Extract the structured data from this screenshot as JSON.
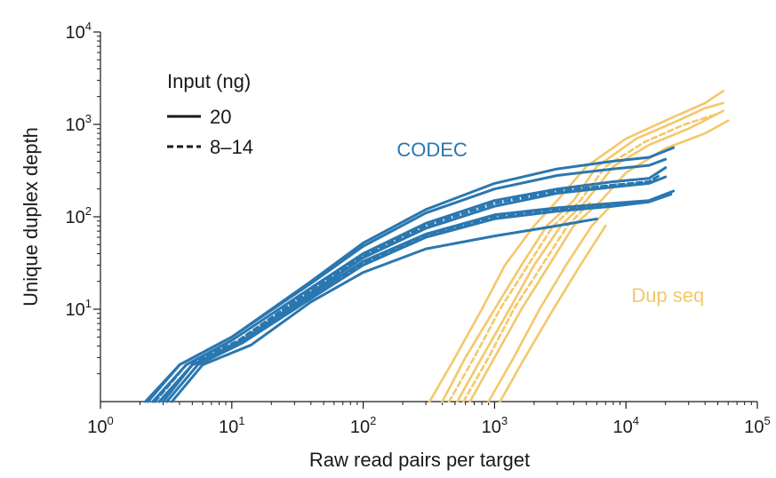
{
  "chart_data": {
    "type": "line",
    "xlabel": "Raw read pairs per target",
    "ylabel": "Unique duplex depth",
    "x_scale": "log",
    "y_scale": "log",
    "xlim": [
      1,
      100000
    ],
    "ylim": [
      1,
      10000
    ],
    "x_ticks": [
      {
        "base": "10",
        "exp": "0",
        "value": 1
      },
      {
        "base": "10",
        "exp": "1",
        "value": 10
      },
      {
        "base": "10",
        "exp": "2",
        "value": 100
      },
      {
        "base": "10",
        "exp": "3",
        "value": 1000
      },
      {
        "base": "10",
        "exp": "4",
        "value": 10000
      },
      {
        "base": "10",
        "exp": "5",
        "value": 100000
      }
    ],
    "y_ticks": [
      {
        "base": "10",
        "exp": "1",
        "value": 10
      },
      {
        "base": "10",
        "exp": "2",
        "value": 100
      },
      {
        "base": "10",
        "exp": "3",
        "value": 1000
      },
      {
        "base": "10",
        "exp": "4",
        "value": 10000
      }
    ],
    "grid": false,
    "legend": {
      "title": "Input (ng)",
      "position": "top-left",
      "entries": [
        {
          "label": "20",
          "style": "solid"
        },
        {
          "label": "8–14",
          "style": "dashed"
        }
      ]
    },
    "groups": [
      {
        "label": "CODEC",
        "color": "#2a77b0",
        "label_at": [
          180,
          450
        ]
      },
      {
        "label": "Dup seq",
        "color": "#f4c76a",
        "label_at": [
          11000,
          12
        ]
      }
    ],
    "series": [
      {
        "group": "CODEC",
        "style": "solid",
        "points": [
          [
            2.2,
            1
          ],
          [
            4,
            2.5
          ],
          [
            10,
            5
          ],
          [
            40,
            20
          ],
          [
            100,
            52
          ],
          [
            300,
            120
          ],
          [
            1000,
            230
          ],
          [
            3000,
            330
          ],
          [
            8000,
            400
          ],
          [
            15000,
            440
          ],
          [
            23000,
            560
          ]
        ]
      },
      {
        "group": "CODEC",
        "style": "solid",
        "points": [
          [
            2.3,
            1
          ],
          [
            4,
            2.5
          ],
          [
            10,
            5
          ],
          [
            40,
            19
          ],
          [
            100,
            48
          ],
          [
            300,
            110
          ],
          [
            1000,
            200
          ],
          [
            3000,
            280
          ],
          [
            8000,
            330
          ],
          [
            15000,
            360
          ],
          [
            20000,
            420
          ]
        ]
      },
      {
        "group": "CODEC",
        "style": "solid",
        "points": [
          [
            2.5,
            1
          ],
          [
            4.5,
            2.5
          ],
          [
            10,
            4.6
          ],
          [
            40,
            17
          ],
          [
            100,
            40
          ],
          [
            300,
            85
          ],
          [
            1000,
            150
          ],
          [
            3000,
            200
          ],
          [
            8000,
            240
          ],
          [
            15000,
            260
          ],
          [
            20000,
            340
          ]
        ]
      },
      {
        "group": "CODEC",
        "style": "solid",
        "points": [
          [
            2.8,
            1
          ],
          [
            5,
            2.5
          ],
          [
            12,
            4.6
          ],
          [
            40,
            15
          ],
          [
            100,
            36
          ],
          [
            300,
            75
          ],
          [
            1000,
            130
          ],
          [
            3000,
            180
          ],
          [
            8000,
            210
          ],
          [
            15000,
            230
          ],
          [
            20000,
            270
          ]
        ]
      },
      {
        "group": "CODEC",
        "style": "solid",
        "points": [
          [
            3,
            1
          ],
          [
            5,
            2.5
          ],
          [
            12,
            4.4
          ],
          [
            40,
            14
          ],
          [
            100,
            33
          ],
          [
            300,
            65
          ],
          [
            1000,
            105
          ],
          [
            3000,
            125
          ],
          [
            8000,
            140
          ],
          [
            15000,
            150
          ],
          [
            23000,
            190
          ]
        ]
      },
      {
        "group": "CODEC",
        "style": "solid",
        "points": [
          [
            3.2,
            1
          ],
          [
            5.5,
            2.5
          ],
          [
            12,
            4.3
          ],
          [
            40,
            13
          ],
          [
            100,
            30
          ],
          [
            300,
            60
          ],
          [
            1000,
            95
          ],
          [
            3000,
            115
          ],
          [
            8000,
            130
          ],
          [
            15000,
            145
          ],
          [
            22000,
            175
          ]
        ]
      },
      {
        "group": "CODEC",
        "style": "solid",
        "points": [
          [
            3.5,
            1
          ],
          [
            6,
            2.5
          ],
          [
            14,
            4.1
          ],
          [
            40,
            12
          ],
          [
            100,
            25
          ],
          [
            300,
            45
          ],
          [
            1000,
            62
          ],
          [
            3000,
            80
          ],
          [
            6000,
            95
          ]
        ]
      },
      {
        "group": "CODEC",
        "style": "dashed",
        "points": [
          [
            2.6,
            1
          ],
          [
            4.5,
            2.5
          ],
          [
            11,
            4.5
          ],
          [
            40,
            16
          ],
          [
            100,
            38
          ],
          [
            300,
            80
          ],
          [
            1000,
            140
          ],
          [
            3000,
            190
          ],
          [
            8000,
            220
          ],
          [
            15000,
            240
          ],
          [
            18000,
            280
          ]
        ]
      },
      {
        "group": "CODEC",
        "style": "dashed",
        "points": [
          [
            3,
            1
          ],
          [
            5,
            2.5
          ],
          [
            12,
            4.4
          ],
          [
            40,
            14
          ],
          [
            100,
            32
          ],
          [
            300,
            62
          ],
          [
            1000,
            100
          ],
          [
            3000,
            120
          ],
          [
            8000,
            135
          ],
          [
            15000,
            145
          ],
          [
            18000,
            165
          ]
        ]
      },
      {
        "group": "Dup seq",
        "style": "solid",
        "points": [
          [
            320,
            1
          ],
          [
            500,
            3
          ],
          [
            800,
            10
          ],
          [
            1200,
            30
          ],
          [
            2000,
            80
          ],
          [
            3000,
            150
          ],
          [
            5000,
            350
          ],
          [
            10000,
            700
          ],
          [
            20000,
            1100
          ],
          [
            40000,
            1700
          ],
          [
            55000,
            2300
          ]
        ]
      },
      {
        "group": "Dup seq",
        "style": "solid",
        "points": [
          [
            400,
            1
          ],
          [
            600,
            3
          ],
          [
            1000,
            10
          ],
          [
            1600,
            30
          ],
          [
            2500,
            80
          ],
          [
            4000,
            150
          ],
          [
            6000,
            350
          ],
          [
            12000,
            700
          ],
          [
            25000,
            1100
          ],
          [
            40000,
            1500
          ],
          [
            55000,
            1700
          ]
        ]
      },
      {
        "group": "Dup seq",
        "style": "solid",
        "points": [
          [
            520,
            1
          ],
          [
            800,
            3
          ],
          [
            1300,
            10
          ],
          [
            2000,
            30
          ],
          [
            3200,
            80
          ],
          [
            5000,
            150
          ],
          [
            8000,
            350
          ],
          [
            15000,
            600
          ],
          [
            30000,
            900
          ],
          [
            55000,
            1400
          ]
        ]
      },
      {
        "group": "Dup seq",
        "style": "solid",
        "points": [
          [
            650,
            1
          ],
          [
            1000,
            3
          ],
          [
            1600,
            10
          ],
          [
            2600,
            30
          ],
          [
            4000,
            80
          ],
          [
            6500,
            150
          ],
          [
            10000,
            300
          ],
          [
            20000,
            550
          ],
          [
            40000,
            800
          ],
          [
            60000,
            1100
          ]
        ]
      },
      {
        "group": "Dup seq",
        "style": "solid",
        "points": [
          [
            900,
            1
          ],
          [
            1400,
            3
          ],
          [
            2200,
            10
          ],
          [
            3500,
            30
          ],
          [
            5500,
            80
          ],
          [
            8000,
            140
          ]
        ]
      },
      {
        "group": "Dup seq",
        "style": "solid",
        "points": [
          [
            1100,
            1
          ],
          [
            1700,
            3
          ],
          [
            2800,
            10
          ],
          [
            4500,
            30
          ],
          [
            7000,
            80
          ]
        ]
      },
      {
        "group": "Dup seq",
        "style": "dashed",
        "points": [
          [
            450,
            1
          ],
          [
            700,
            3
          ],
          [
            1100,
            10
          ],
          [
            1800,
            30
          ],
          [
            2800,
            80
          ],
          [
            4500,
            150
          ],
          [
            7000,
            350
          ],
          [
            14000,
            650
          ],
          [
            28000,
            1000
          ],
          [
            50000,
            1300
          ]
        ]
      },
      {
        "group": "Dup seq",
        "style": "dashed",
        "points": [
          [
            580,
            1
          ],
          [
            900,
            3
          ],
          [
            1400,
            10
          ],
          [
            2300,
            30
          ],
          [
            3600,
            80
          ],
          [
            5500,
            150
          ]
        ]
      }
    ]
  }
}
